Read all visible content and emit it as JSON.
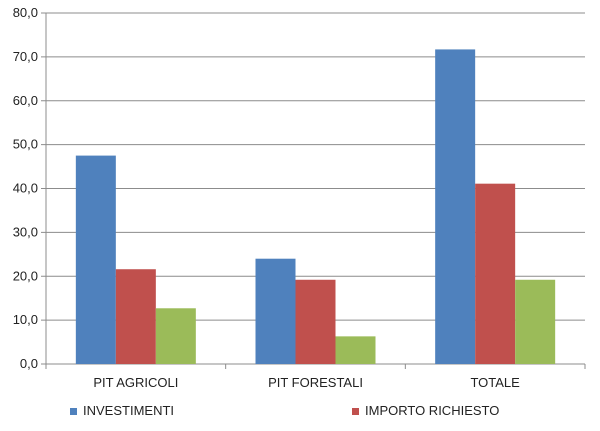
{
  "chart_data": {
    "type": "bar",
    "title": "",
    "xlabel": "",
    "ylabel": "",
    "categories": [
      "PIT AGRICOLI",
      "PIT FORESTALI",
      "TOTALE"
    ],
    "series": [
      {
        "name": "INVESTIMENTI",
        "color": "#4F81BD",
        "values": [
          47.5,
          24.0,
          71.7
        ]
      },
      {
        "name": "IMPORTO RICHIESTO",
        "color": "#C0504D",
        "values": [
          21.6,
          19.2,
          41.1
        ]
      },
      {
        "name": "",
        "color": "#9BBB59",
        "values": [
          12.7,
          6.3,
          19.2
        ]
      }
    ],
    "ylim": [
      0,
      80
    ],
    "yticks": [
      "0,0",
      "10,0",
      "20,0",
      "30,0",
      "40,0",
      "50,0",
      "60,0",
      "70,0",
      "80,0"
    ],
    "grid": true,
    "legend_position": "bottom"
  }
}
